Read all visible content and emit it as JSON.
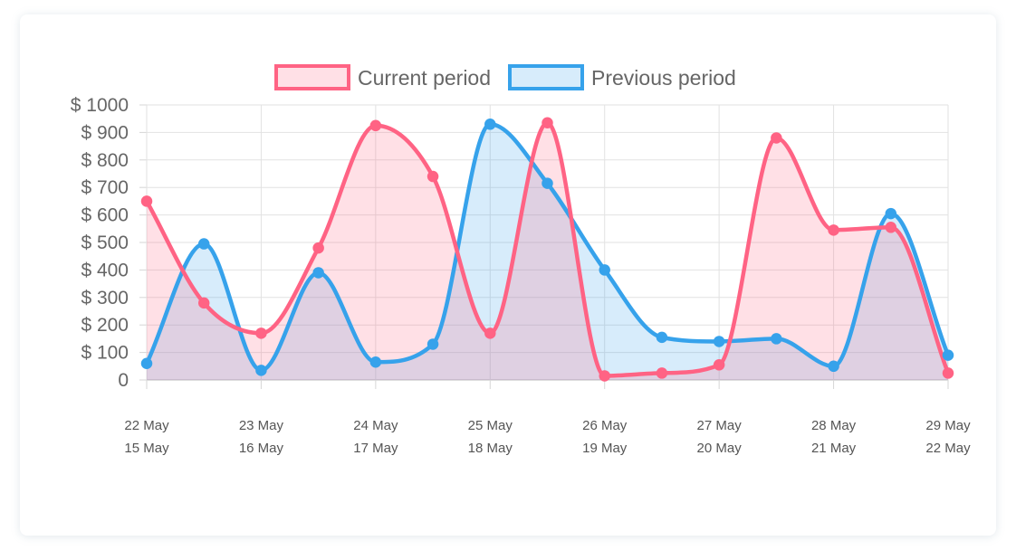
{
  "chart_data": {
    "type": "line",
    "legend_position": "top",
    "grid": true,
    "ylim": [
      0,
      1000
    ],
    "y_ticks": [
      "$ 1000",
      "$ 900",
      "$ 800",
      "$ 700",
      "$ 600",
      "$ 500",
      "$ 400",
      "$ 300",
      "$ 200",
      "$ 100",
      "0"
    ],
    "y_tick_values": [
      1000,
      900,
      800,
      700,
      600,
      500,
      400,
      300,
      200,
      100,
      0
    ],
    "x_labels": [
      {
        "current": "22 May",
        "previous": "15 May"
      },
      {
        "current": "23 May",
        "previous": "16 May"
      },
      {
        "current": "24 May",
        "previous": "17 May"
      },
      {
        "current": "25 May",
        "previous": "18 May"
      },
      {
        "current": "26 May",
        "previous": "19 May"
      },
      {
        "current": "27 May",
        "previous": "20 May"
      },
      {
        "current": "28 May",
        "previous": "21 May"
      },
      {
        "current": "29 May",
        "previous": "22 May"
      }
    ],
    "series": [
      {
        "name": "Current period",
        "color": "#ff6384",
        "fill": "rgba(255,99,132,0.2)",
        "x": [
          0,
          0.5,
          1,
          1.5,
          2,
          2.5,
          3,
          3.5,
          4,
          4.5,
          5,
          5.5,
          6,
          6.5,
          7
        ],
        "values": [
          650,
          280,
          170,
          480,
          925,
          740,
          170,
          935,
          15,
          25,
          55,
          880,
          545,
          555,
          25
        ]
      },
      {
        "name": "Previous period",
        "color": "#36a2eb",
        "fill": "rgba(54,162,235,0.2)",
        "x": [
          0,
          0.5,
          1,
          1.5,
          2,
          2.5,
          3,
          3.5,
          4,
          4.5,
          5,
          5.5,
          6,
          6.5,
          7
        ],
        "values": [
          60,
          495,
          35,
          390,
          65,
          130,
          930,
          715,
          400,
          155,
          140,
          150,
          50,
          605,
          90
        ]
      }
    ]
  }
}
